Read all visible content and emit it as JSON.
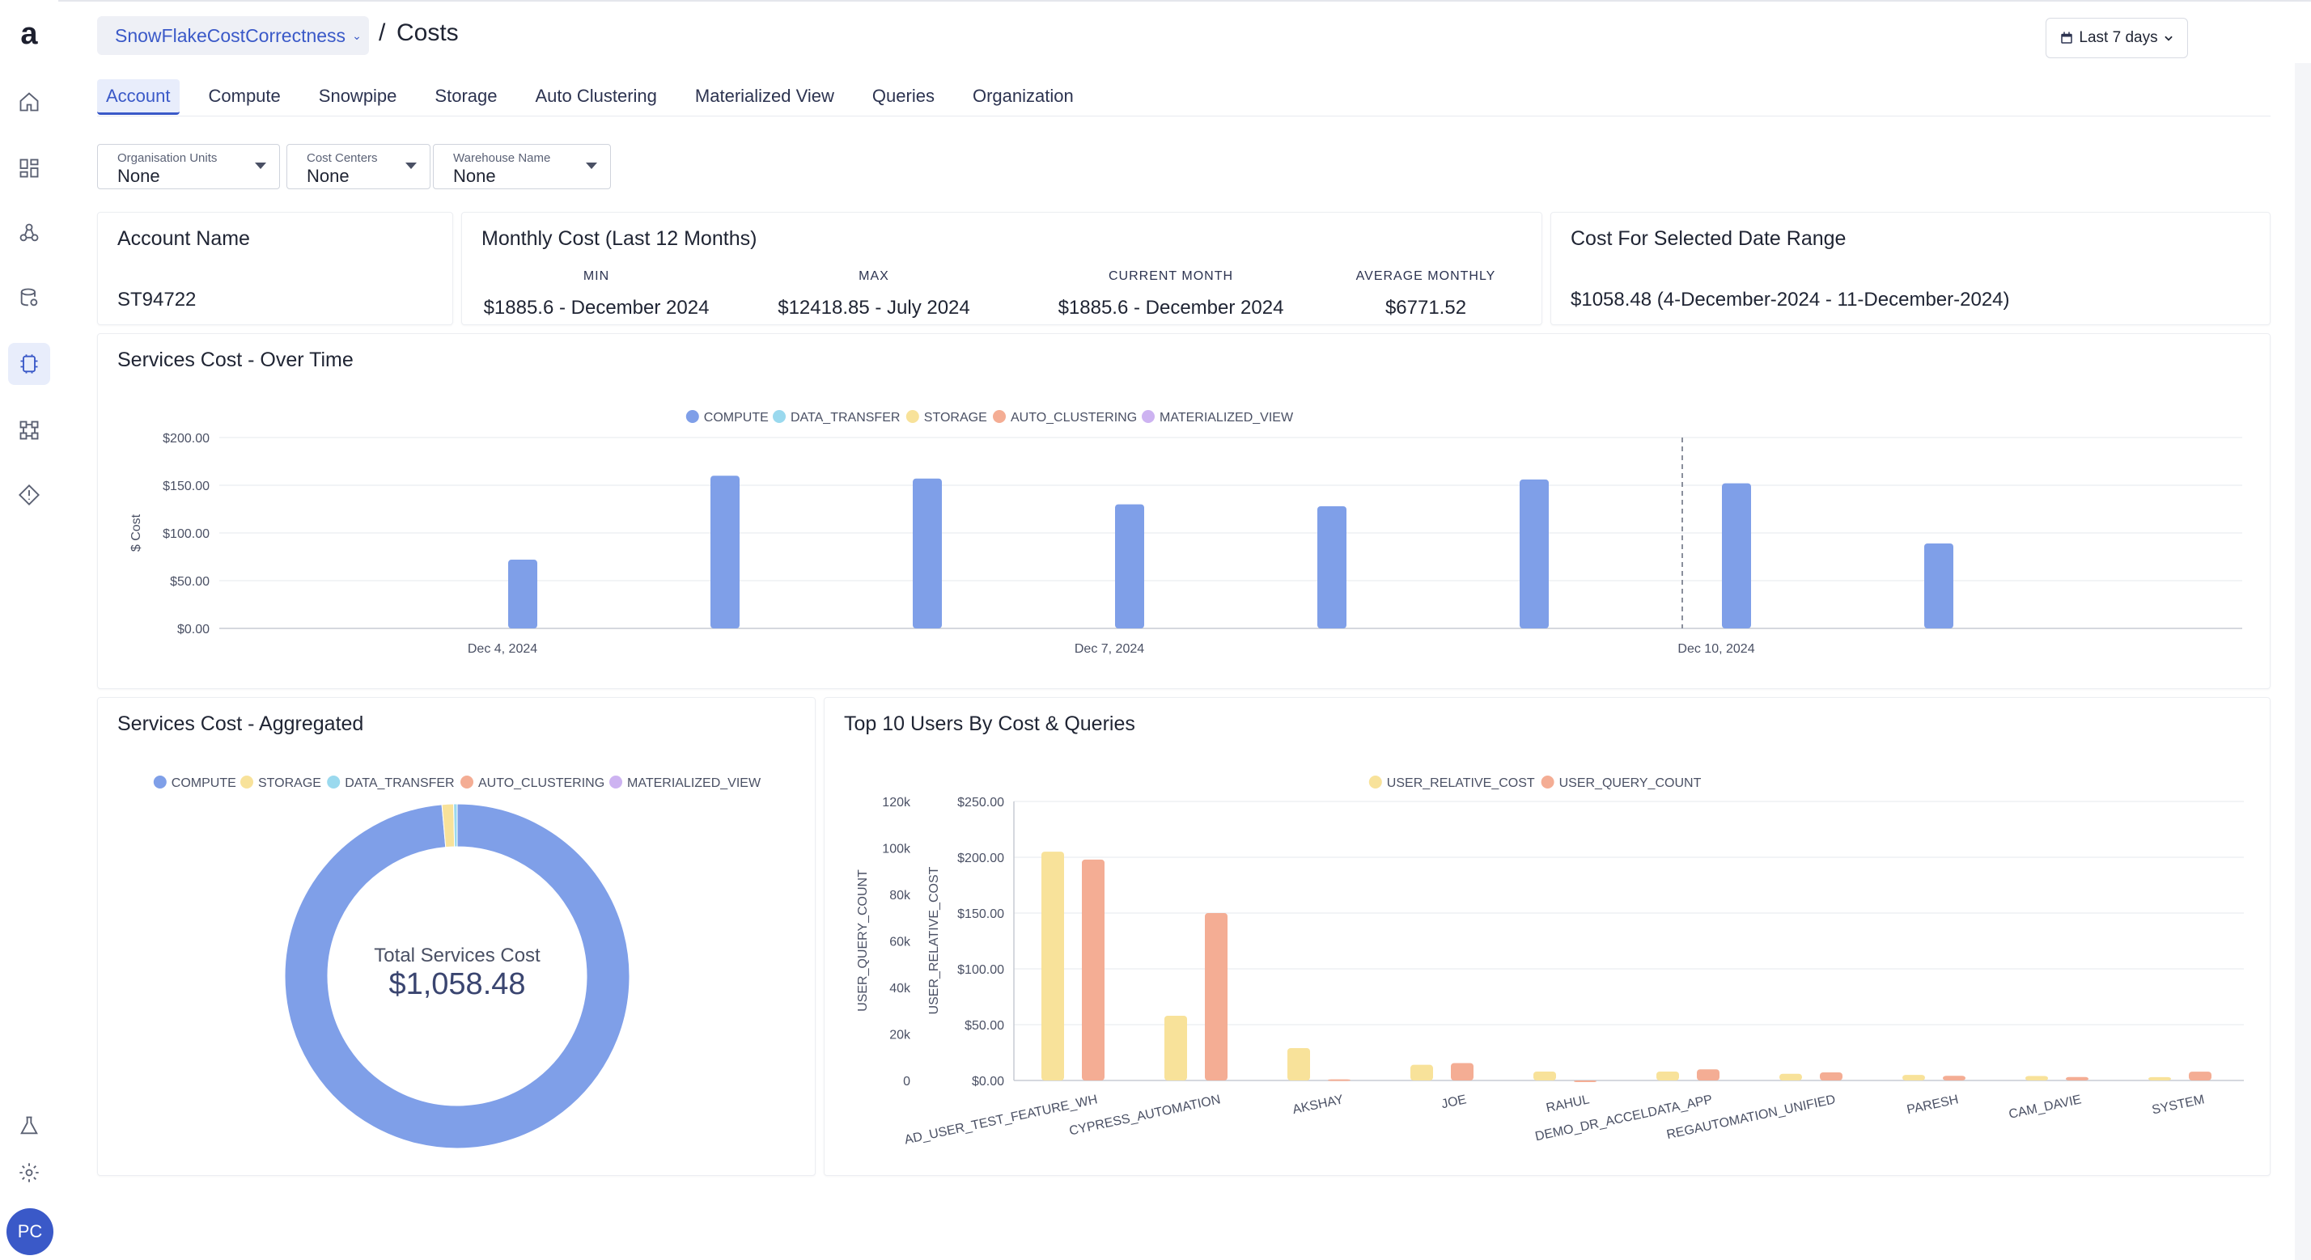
{
  "header": {
    "project": "SnowFlakeCostCorrectness",
    "separator": "/",
    "title": "Costs",
    "date_range": "Last 7 days",
    "avatar_initials": "PC"
  },
  "sidebar": {
    "logo": "a",
    "items": [
      {
        "icon": "home-icon"
      },
      {
        "icon": "dashboard-icon"
      },
      {
        "icon": "pipelines-icon"
      },
      {
        "icon": "data-sources-icon"
      },
      {
        "icon": "compute-cost-icon",
        "active": true
      },
      {
        "icon": "lineage-icon"
      },
      {
        "icon": "alerts-icon"
      }
    ],
    "bottom_items": [
      {
        "icon": "lab-icon"
      },
      {
        "icon": "gear-icon"
      }
    ]
  },
  "tabs": [
    "Account",
    "Compute",
    "Snowpipe",
    "Storage",
    "Auto Clustering",
    "Materialized View",
    "Queries",
    "Organization"
  ],
  "active_tab": "Account",
  "filters": [
    {
      "label": "Organisation Units",
      "value": "None"
    },
    {
      "label": "Cost Centers",
      "value": "None"
    },
    {
      "label": "Warehouse Name",
      "value": "None"
    }
  ],
  "account_card": {
    "title": "Account Name",
    "value": "ST94722"
  },
  "monthly_card": {
    "title": "Monthly Cost (Last 12 Months)",
    "stats": [
      {
        "label": "MIN",
        "value": "$1885.6 - December 2024"
      },
      {
        "label": "MAX",
        "value": "$12418.85 - July 2024"
      },
      {
        "label": "CURRENT MONTH",
        "value": "$1885.6 - December 2024"
      },
      {
        "label": "AVERAGE MONTHLY",
        "value": "$6771.52"
      }
    ]
  },
  "date_range_card": {
    "title": "Cost For Selected Date Range",
    "value": "$1058.48 (4-December-2024 - 11-December-2024)"
  },
  "colors": {
    "accent": "#3a59c8",
    "compute": "#7f9fe8",
    "data_transfer": "#9ad9ee",
    "storage": "#f8e29a",
    "auto_clustering": "#f4ad94",
    "materialized_view": "#cdb3f1",
    "user_relative_cost": "#f8e29a",
    "user_query_count": "#f4ad94"
  },
  "chart_data": [
    {
      "type": "bar",
      "title": "Services Cost - Over Time",
      "ylabel": "$ Cost",
      "xlabel": "",
      "legend": [
        "COMPUTE",
        "DATA_TRANSFER",
        "STORAGE",
        "AUTO_CLUSTERING",
        "MATERIALIZED_VIEW"
      ],
      "legend_position": "top-center",
      "y_ticks": [
        "$0.00",
        "$50.00",
        "$100.00",
        "$150.00",
        "$200.00"
      ],
      "ylim": [
        0,
        200
      ],
      "x_tick_labels": [
        "Dec 4, 2024",
        "Dec 7, 2024",
        "Dec 10, 2024"
      ],
      "x": [
        "Dec 4, 2024",
        "Dec 5, 2024",
        "Dec 6, 2024",
        "Dec 7, 2024",
        "Dec 8, 2024",
        "Dec 9, 2024",
        "Dec 10, 2024",
        "Dec 11, 2024"
      ],
      "series": [
        {
          "name": "COMPUTE",
          "values": [
            72,
            160,
            157,
            130,
            128,
            156,
            152,
            89
          ]
        }
      ],
      "grid": true
    },
    {
      "type": "pie",
      "title": "Services Cost - Aggregated",
      "legend": [
        "COMPUTE",
        "STORAGE",
        "DATA_TRANSFER",
        "AUTO_CLUSTERING",
        "MATERIALIZED_VIEW"
      ],
      "legend_position": "top-center",
      "center_label": "Total Services Cost",
      "center_value": "$1,058.48",
      "slices": [
        {
          "name": "COMPUTE",
          "value": 1043.5
        },
        {
          "name": "STORAGE",
          "value": 11.5
        },
        {
          "name": "DATA_TRANSFER",
          "value": 3.48
        },
        {
          "name": "AUTO_CLUSTERING",
          "value": 0
        },
        {
          "name": "MATERIALIZED_VIEW",
          "value": 0
        }
      ]
    },
    {
      "type": "bar",
      "title": "Top 10 Users By Cost & Queries",
      "categories": [
        "AD_USER_TEST_FEATURE_WH",
        "CYPRESS_AUTOMATION",
        "AKSHAY",
        "JOE",
        "RAHUL",
        "DEMO_DR_ACCELDATA_APP",
        "REGAUTOMATION_UNIFIED",
        "PARESH",
        "CAM_DAVIE",
        "SYSTEM"
      ],
      "legend": [
        "USER_RELATIVE_COST",
        "USER_QUERY_COUNT"
      ],
      "legend_position": "top-center",
      "y_left_outer_label": "USER_QUERY_COUNT",
      "y_left_outer_ticks": [
        "0",
        "20k",
        "40k",
        "60k",
        "80k",
        "100k",
        "120k"
      ],
      "y_left_outer_lim": [
        0,
        120000
      ],
      "y_left_inner_label": "USER_RELATIVE_COST",
      "y_left_inner_ticks": [
        "$0.00",
        "$50.00",
        "$100.00",
        "$150.00",
        "$200.00",
        "$250.00"
      ],
      "y_left_inner_lim": [
        0,
        250
      ],
      "series": [
        {
          "name": "USER_RELATIVE_COST",
          "values": [
            205,
            58,
            29,
            14,
            8,
            8,
            6,
            5,
            4,
            3
          ]
        },
        {
          "name": "USER_QUERY_COUNT",
          "values": [
            95000,
            72000,
            500,
            7500,
            0,
            4800,
            3500,
            2000,
            1500,
            3800
          ]
        }
      ],
      "grid": true
    }
  ]
}
